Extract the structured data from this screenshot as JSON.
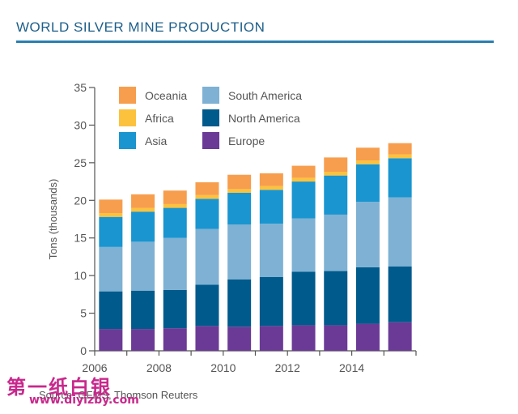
{
  "page": {
    "title": "WORLD SILVER MINE PRODUCTION",
    "source": "Source: GFMS, Thomson Reuters",
    "watermark_cn": "第一纸白银",
    "watermark_url": "www.diyizby.com"
  },
  "chart_data": {
    "type": "bar",
    "stacked": true,
    "ylabel": "Tons (thousands)",
    "ylim": [
      0,
      35
    ],
    "yticks": [
      0,
      5,
      10,
      15,
      20,
      25,
      30,
      35
    ],
    "categories": [
      "2006",
      "2007",
      "2008",
      "2009",
      "2010",
      "2011",
      "2012",
      "2013",
      "2014",
      "2015"
    ],
    "xtick_labels": [
      "2006",
      "2008",
      "2010",
      "2012",
      "2014"
    ],
    "legend_position": "top",
    "series": [
      {
        "name": "Europe",
        "color": "#6b3a96",
        "values": [
          2.9,
          2.9,
          3.0,
          3.3,
          3.2,
          3.3,
          3.4,
          3.4,
          3.6,
          3.8
        ]
      },
      {
        "name": "North America",
        "color": "#005a8c",
        "values": [
          5.0,
          5.1,
          5.1,
          5.5,
          6.3,
          6.5,
          7.1,
          7.2,
          7.5,
          7.4
        ]
      },
      {
        "name": "South America",
        "color": "#7eb1d3",
        "values": [
          5.9,
          6.5,
          6.9,
          7.4,
          7.3,
          7.1,
          7.1,
          7.5,
          8.7,
          9.2
        ]
      },
      {
        "name": "Asia",
        "color": "#1a95d0",
        "values": [
          4.0,
          4.0,
          4.0,
          4.0,
          4.2,
          4.5,
          4.9,
          5.2,
          5.0,
          5.2
        ]
      },
      {
        "name": "Africa",
        "color": "#fcc23d",
        "values": [
          0.5,
          0.5,
          0.5,
          0.5,
          0.5,
          0.5,
          0.5,
          0.5,
          0.5,
          0.5
        ]
      },
      {
        "name": "Oceania",
        "color": "#f79e4e",
        "values": [
          1.8,
          1.8,
          1.8,
          1.7,
          1.9,
          1.7,
          1.6,
          1.9,
          1.7,
          1.5
        ]
      }
    ],
    "legend_order": [
      "Oceania",
      "South America",
      "Africa",
      "North America",
      "Asia",
      "Europe"
    ]
  }
}
